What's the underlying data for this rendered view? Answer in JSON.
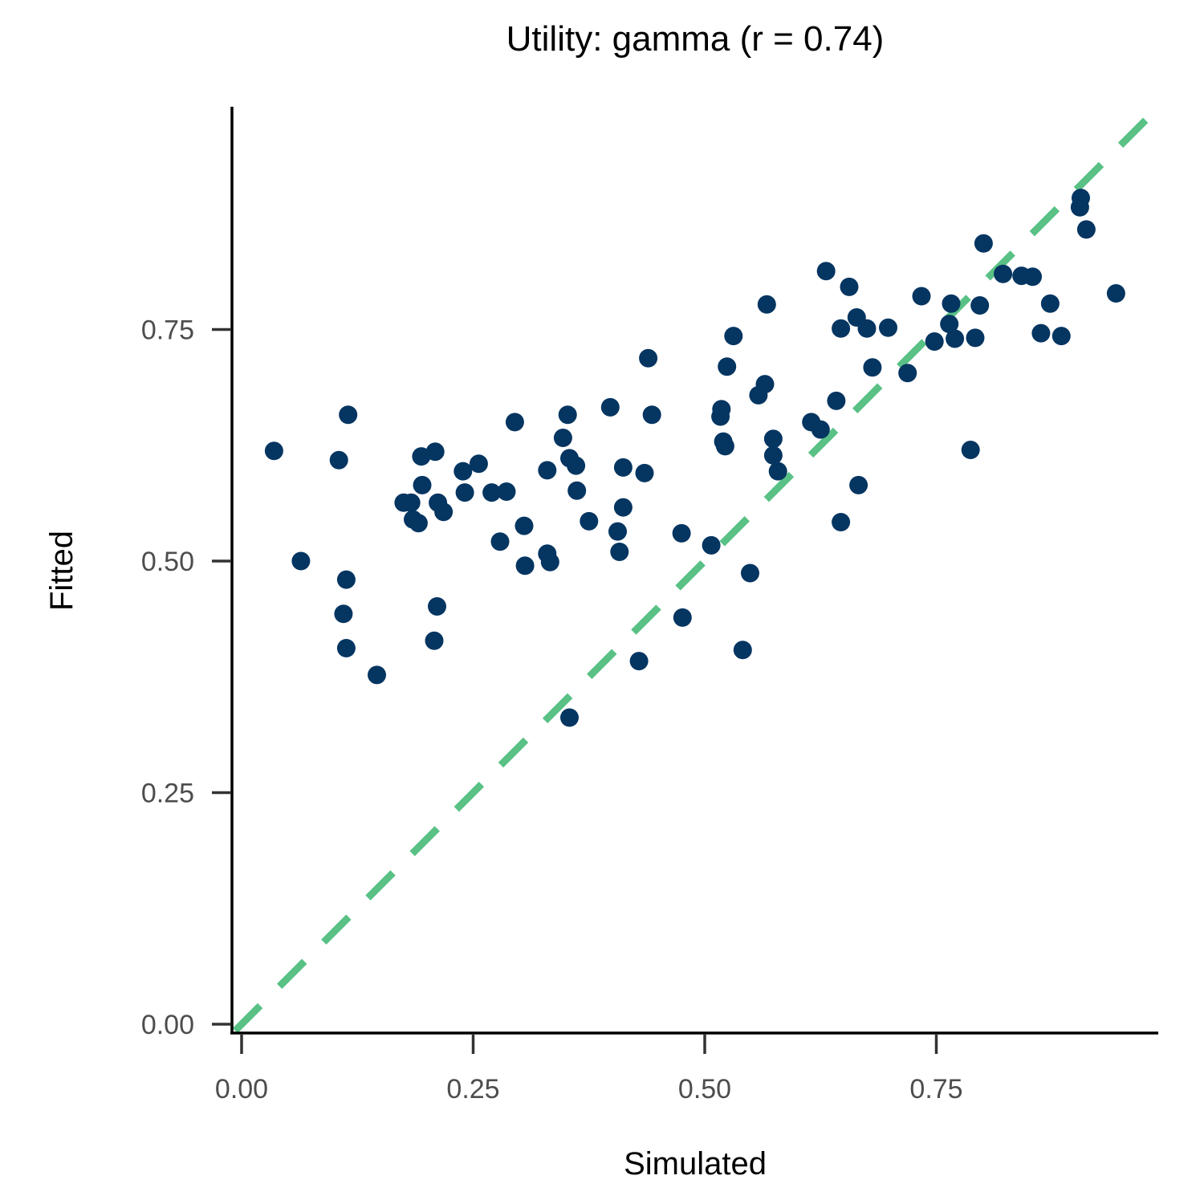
{
  "chart_data": {
    "type": "scatter",
    "title": "Utility: gamma (r = 0.74)",
    "xlabel": "Simulated",
    "ylabel": "Fitted",
    "xlim": [
      -0.01,
      0.99
    ],
    "ylim": [
      -0.01,
      0.99
    ],
    "x_ticks": [
      0.0,
      0.25,
      0.5,
      0.75
    ],
    "x_tick_labels": [
      "0.00",
      "0.25",
      "0.50",
      "0.75"
    ],
    "y_ticks": [
      0.0,
      0.25,
      0.5,
      0.75
    ],
    "y_tick_labels": [
      "0.00",
      "0.25",
      "0.50",
      "0.75"
    ],
    "grid": false,
    "legend": null,
    "reference_line": {
      "type": "identity",
      "style": "dashed",
      "color": "#59c185",
      "from": [
        0,
        0
      ],
      "to": [
        0.98,
        0.98
      ]
    },
    "point_color": "#053561",
    "correlation_r": 0.74,
    "points": [
      [
        0.035,
        0.619
      ],
      [
        0.064,
        0.5
      ],
      [
        0.105,
        0.609
      ],
      [
        0.115,
        0.658
      ],
      [
        0.113,
        0.48
      ],
      [
        0.11,
        0.443
      ],
      [
        0.113,
        0.406
      ],
      [
        0.146,
        0.377
      ],
      [
        0.175,
        0.563
      ],
      [
        0.183,
        0.563
      ],
      [
        0.185,
        0.545
      ],
      [
        0.191,
        0.541
      ],
      [
        0.194,
        0.613
      ],
      [
        0.195,
        0.582
      ],
      [
        0.209,
        0.618
      ],
      [
        0.212,
        0.563
      ],
      [
        0.218,
        0.553
      ],
      [
        0.208,
        0.414
      ],
      [
        0.211,
        0.451
      ],
      [
        0.239,
        0.597
      ],
      [
        0.241,
        0.574
      ],
      [
        0.256,
        0.605
      ],
      [
        0.27,
        0.574
      ],
      [
        0.286,
        0.575
      ],
      [
        0.295,
        0.65
      ],
      [
        0.279,
        0.521
      ],
      [
        0.305,
        0.538
      ],
      [
        0.306,
        0.495
      ],
      [
        0.33,
        0.508
      ],
      [
        0.333,
        0.499
      ],
      [
        0.33,
        0.598
      ],
      [
        0.347,
        0.633
      ],
      [
        0.352,
        0.658
      ],
      [
        0.354,
        0.611
      ],
      [
        0.361,
        0.603
      ],
      [
        0.362,
        0.576
      ],
      [
        0.375,
        0.543
      ],
      [
        0.354,
        0.331
      ],
      [
        0.398,
        0.666
      ],
      [
        0.406,
        0.532
      ],
      [
        0.408,
        0.51
      ],
      [
        0.412,
        0.601
      ],
      [
        0.412,
        0.558
      ],
      [
        0.435,
        0.595
      ],
      [
        0.439,
        0.719
      ],
      [
        0.443,
        0.658
      ],
      [
        0.429,
        0.392
      ],
      [
        0.475,
        0.53
      ],
      [
        0.476,
        0.439
      ],
      [
        0.507,
        0.517
      ],
      [
        0.517,
        0.656
      ],
      [
        0.518,
        0.664
      ],
      [
        0.52,
        0.629
      ],
      [
        0.522,
        0.624
      ],
      [
        0.524,
        0.71
      ],
      [
        0.531,
        0.743
      ],
      [
        0.558,
        0.679
      ],
      [
        0.565,
        0.691
      ],
      [
        0.567,
        0.777
      ],
      [
        0.574,
        0.632
      ],
      [
        0.574,
        0.614
      ],
      [
        0.579,
        0.597
      ],
      [
        0.549,
        0.487
      ],
      [
        0.541,
        0.404
      ],
      [
        0.615,
        0.65
      ],
      [
        0.625,
        0.642
      ],
      [
        0.631,
        0.813
      ],
      [
        0.642,
        0.673
      ],
      [
        0.656,
        0.796
      ],
      [
        0.647,
        0.751
      ],
      [
        0.664,
        0.763
      ],
      [
        0.675,
        0.751
      ],
      [
        0.666,
        0.582
      ],
      [
        0.647,
        0.542
      ],
      [
        0.681,
        0.709
      ],
      [
        0.698,
        0.752
      ],
      [
        0.719,
        0.703
      ],
      [
        0.734,
        0.786
      ],
      [
        0.748,
        0.737
      ],
      [
        0.764,
        0.756
      ],
      [
        0.766,
        0.778
      ],
      [
        0.77,
        0.74
      ],
      [
        0.792,
        0.741
      ],
      [
        0.797,
        0.776
      ],
      [
        0.801,
        0.843
      ],
      [
        0.787,
        0.62
      ],
      [
        0.822,
        0.81
      ],
      [
        0.842,
        0.808
      ],
      [
        0.854,
        0.807
      ],
      [
        0.863,
        0.746
      ],
      [
        0.873,
        0.778
      ],
      [
        0.885,
        0.743
      ],
      [
        0.905,
        0.882
      ],
      [
        0.906,
        0.892
      ],
      [
        0.912,
        0.858
      ],
      [
        0.944,
        0.789
      ]
    ]
  }
}
